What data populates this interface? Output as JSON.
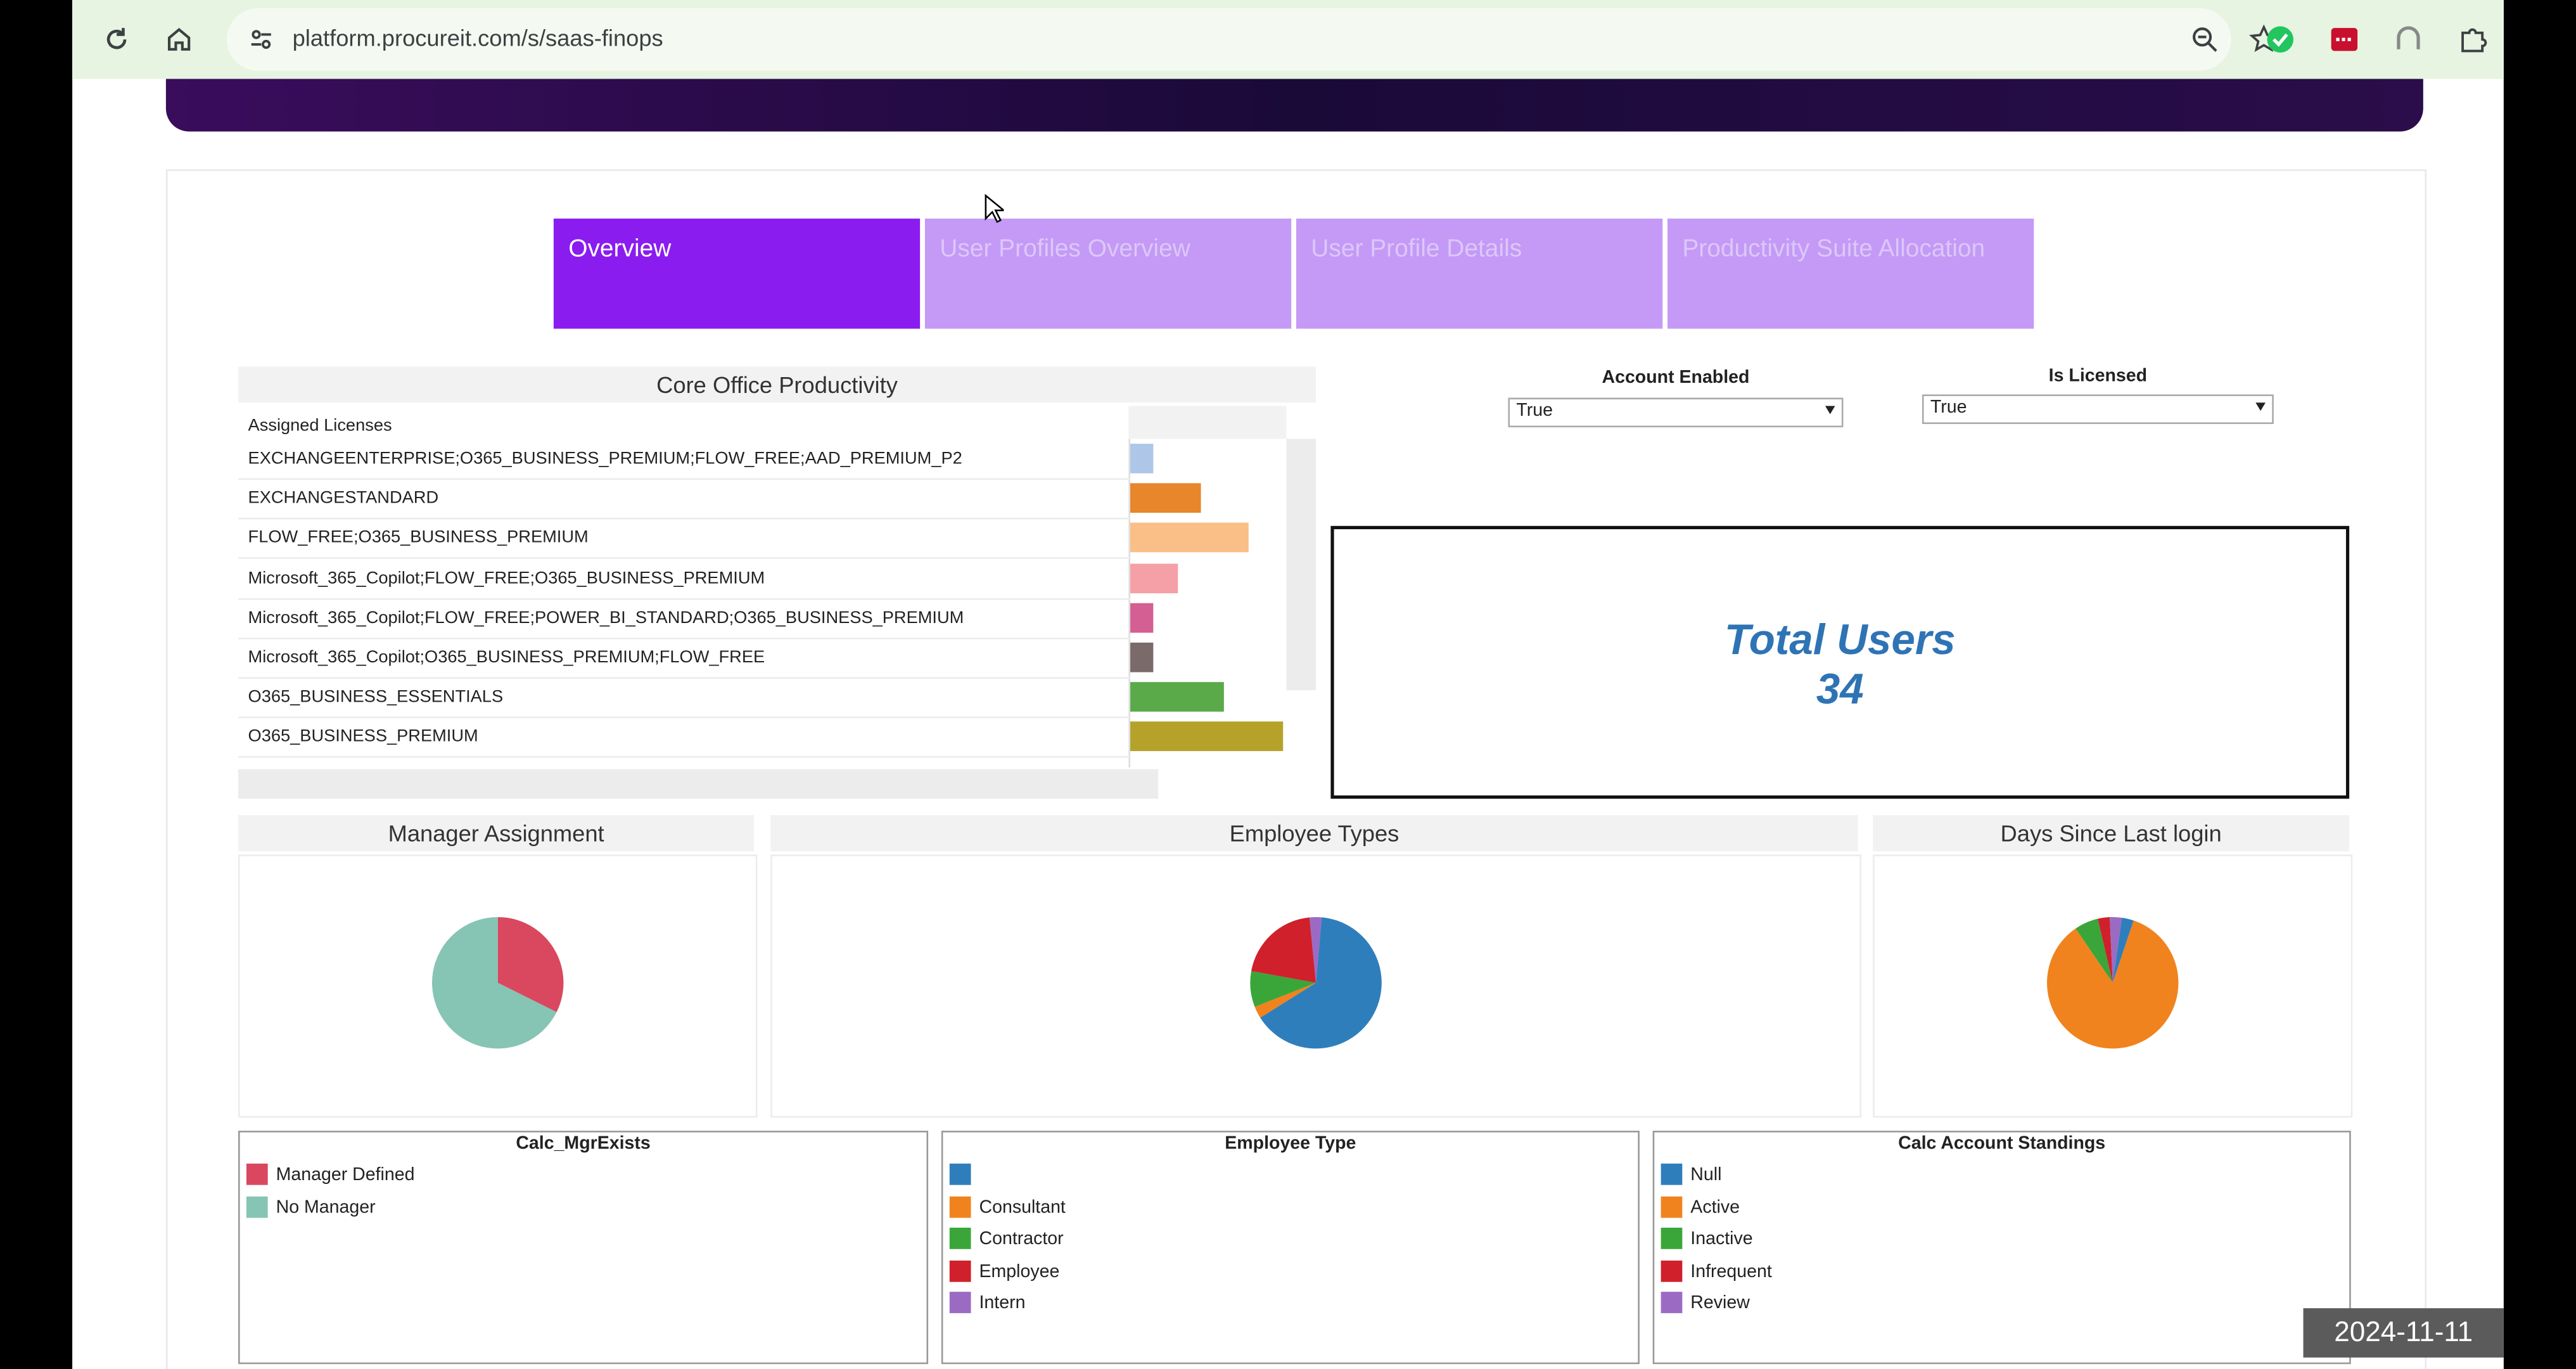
{
  "browser": {
    "url": "platform.procureit.com/s/saas-finops",
    "icons": [
      "reload-icon",
      "home-icon",
      "site-info-icon",
      "zoom-icon",
      "star-icon",
      "extension-green-check-icon",
      "extension-red-icon",
      "extension-grey-icon",
      "extensions-puzzle-icon"
    ]
  },
  "tabs": [
    {
      "label": "Overview",
      "active": true
    },
    {
      "label": "User Profiles Overview",
      "active": false
    },
    {
      "label": "User Profile Details",
      "active": false
    },
    {
      "label": "Productivity Suite Allocation",
      "active": false
    }
  ],
  "core_office": {
    "title": "Core Office Productivity",
    "column_header": "Assigned Licenses",
    "rows": [
      {
        "label": "EXCHANGEENTERPRISE;O365_BUSINESS_PREMIUM;FLOW_FREE;AAD_PREMIUM_P2",
        "value": 1,
        "color": "#aec7e8"
      },
      {
        "label": "EXCHANGESTANDARD",
        "value": 3,
        "color": "#e8862b"
      },
      {
        "label": "FLOW_FREE;O365_BUSINESS_PREMIUM",
        "value": 5,
        "color": "#f9bf86"
      },
      {
        "label": "Microsoft_365_Copilot;FLOW_FREE;O365_BUSINESS_PREMIUM",
        "value": 2,
        "color": "#f4a0a6"
      },
      {
        "label": "Microsoft_365_Copilot;FLOW_FREE;POWER_BI_STANDARD;O365_BUSINESS_PREMIUM",
        "value": 1,
        "color": "#d45f93"
      },
      {
        "label": "Microsoft_365_Copilot;O365_BUSINESS_PREMIUM;FLOW_FREE",
        "value": 1,
        "color": "#7a6a6a"
      },
      {
        "label": "O365_BUSINESS_ESSENTIALS",
        "value": 4,
        "color": "#5aaa4a"
      },
      {
        "label": "O365_BUSINESS_PREMIUM",
        "value": 6.5,
        "color": "#b5a22a"
      }
    ],
    "bar_max": 6.5
  },
  "filters": {
    "account_enabled": {
      "label": "Account Enabled",
      "value": "True"
    },
    "is_licensed": {
      "label": "Is Licensed",
      "value": "True"
    }
  },
  "kpi": {
    "title": "Total Users",
    "value": "34"
  },
  "charts": {
    "manager_assignment": {
      "title": "Manager  Assignment"
    },
    "employee_types": {
      "title": "Employee Types"
    },
    "days_since_login": {
      "title": "Days Since Last login"
    }
  },
  "chart_data": [
    {
      "type": "pie",
      "title": "Manager  Assignment",
      "legend_title": "Calc_MgrExists",
      "categories": [
        "Manager Defined",
        "No Manager"
      ],
      "values": [
        11,
        23
      ],
      "colors": [
        "#d9485f",
        "#86c4b4"
      ]
    },
    {
      "type": "pie",
      "title": "Employee Types",
      "legend_title": "Employee Type",
      "categories": [
        "",
        "Consultant",
        "Contractor",
        "Employee",
        "Intern"
      ],
      "values": [
        22,
        1,
        3,
        7,
        1
      ],
      "colors": [
        "#2f7ebc",
        "#f0831e",
        "#3aa63a",
        "#d0202c",
        "#9b6bc4"
      ]
    },
    {
      "type": "pie",
      "title": "Days Since Last login",
      "legend_title": "Calc Account Standings",
      "categories": [
        "Null",
        "Active",
        "Inactive",
        "Infrequent",
        "Review"
      ],
      "values": [
        1,
        29,
        2,
        1,
        1
      ],
      "colors": [
        "#2f7ebc",
        "#f0831e",
        "#3aa63a",
        "#d0202c",
        "#9b6bc4"
      ]
    }
  ],
  "legends": {
    "mgr": {
      "title": "Calc_MgrExists",
      "items": [
        {
          "label": "Manager Defined",
          "color": "#d9485f"
        },
        {
          "label": "No Manager",
          "color": "#86c4b4"
        }
      ]
    },
    "emp": {
      "title": "Employee Type",
      "items": [
        {
          "label": "",
          "color": "#2f7ebc"
        },
        {
          "label": "Consultant",
          "color": "#f0831e"
        },
        {
          "label": "Contractor",
          "color": "#3aa63a"
        },
        {
          "label": "Employee",
          "color": "#d0202c"
        },
        {
          "label": "Intern",
          "color": "#9b6bc4"
        }
      ]
    },
    "acct": {
      "title": "Calc Account Standings",
      "items": [
        {
          "label": "Null",
          "color": "#2f7ebc"
        },
        {
          "label": "Active",
          "color": "#f0831e"
        },
        {
          "label": "Inactive",
          "color": "#3aa63a"
        },
        {
          "label": "Infrequent",
          "color": "#d0202c"
        },
        {
          "label": "Review",
          "color": "#9b6bc4"
        }
      ]
    }
  },
  "datestamp": "2024-11-11"
}
